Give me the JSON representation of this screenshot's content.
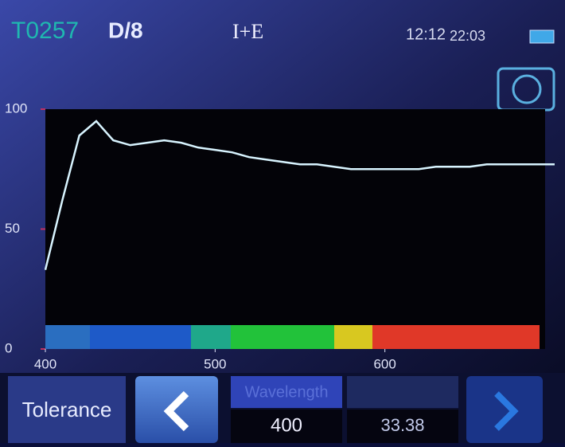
{
  "header": {
    "sample_id": "T0257",
    "geometry": "D/8",
    "mode": "I+E",
    "time": "12:12",
    "date": "22:03"
  },
  "chart_data": {
    "type": "line",
    "x": [
      400,
      410,
      420,
      430,
      440,
      450,
      460,
      470,
      480,
      490,
      500,
      510,
      520,
      530,
      540,
      550,
      560,
      570,
      580,
      590,
      600,
      610,
      620,
      630,
      640,
      650,
      660,
      670,
      680,
      690,
      700
    ],
    "values": [
      33,
      62,
      89,
      95,
      87,
      85,
      86,
      87,
      86,
      84,
      83,
      82,
      80,
      79,
      78,
      77,
      77,
      76,
      75,
      75,
      75,
      75,
      75,
      76,
      76,
      76,
      77,
      77,
      77,
      77,
      77
    ],
    "color": "#d8f4ff",
    "xlim": [
      400,
      700
    ],
    "xticks": [
      400,
      500,
      600
    ],
    "ylim": [
      0,
      100
    ],
    "yticks": [
      0,
      50,
      100
    ]
  },
  "footer": {
    "tolerance": "Tolerance",
    "wavelength_label": "Wavelength",
    "wavelength_value": "400",
    "reading_value": "33.38"
  }
}
